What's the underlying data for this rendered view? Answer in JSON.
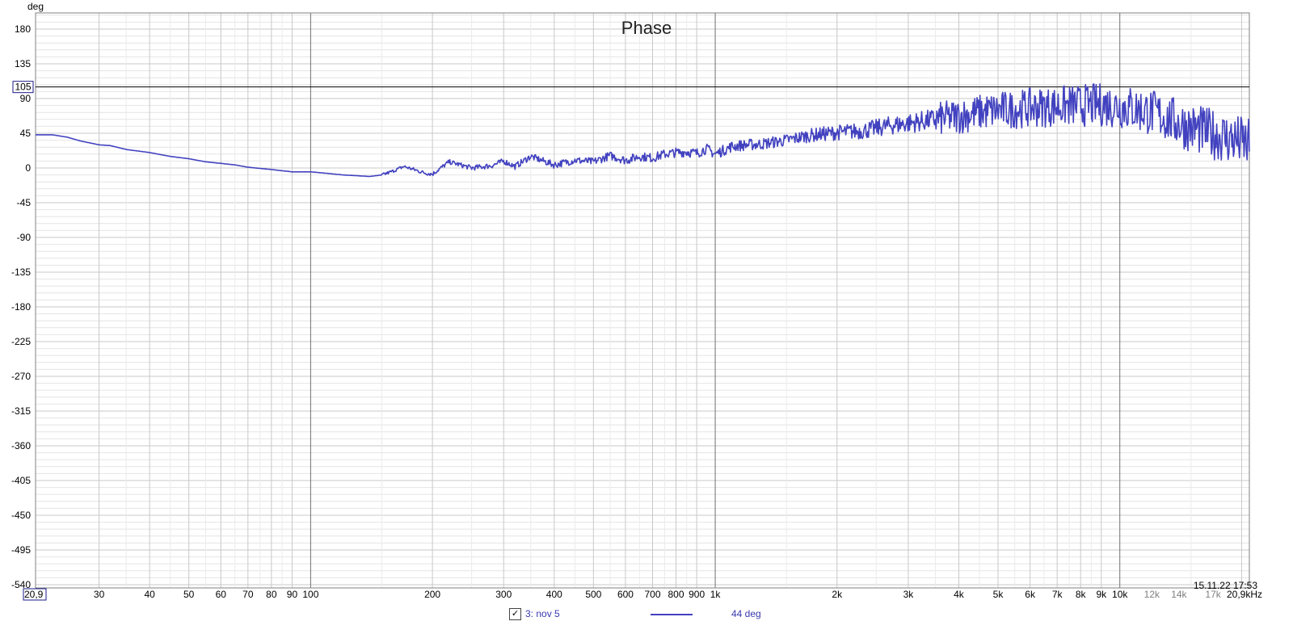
{
  "chart_data": {
    "type": "line",
    "title": "Phase",
    "ylabel": "deg",
    "xlabel": "",
    "x_scale": "log",
    "xlim": [
      20.9,
      20900
    ],
    "ylim": [
      -540,
      200
    ],
    "y_ticks": [
      180,
      135,
      90,
      45,
      0,
      -45,
      -90,
      -135,
      -180,
      -225,
      -270,
      -315,
      -360,
      -405,
      -450,
      -495,
      -540
    ],
    "x_tick_labels": [
      {
        "f": 20.9,
        "label": "20,9",
        "boxed": true
      },
      {
        "f": 30,
        "label": "30"
      },
      {
        "f": 40,
        "label": "40"
      },
      {
        "f": 50,
        "label": "50"
      },
      {
        "f": 60,
        "label": "60"
      },
      {
        "f": 70,
        "label": "70"
      },
      {
        "f": 80,
        "label": "80"
      },
      {
        "f": 90,
        "label": "90"
      },
      {
        "f": 100,
        "label": "100"
      },
      {
        "f": 200,
        "label": "200"
      },
      {
        "f": 300,
        "label": "300"
      },
      {
        "f": 400,
        "label": "400"
      },
      {
        "f": 500,
        "label": "500"
      },
      {
        "f": 600,
        "label": "600"
      },
      {
        "f": 700,
        "label": "700"
      },
      {
        "f": 800,
        "label": "800"
      },
      {
        "f": 900,
        "label": "900"
      },
      {
        "f": 1000,
        "label": "1k"
      },
      {
        "f": 2000,
        "label": "2k"
      },
      {
        "f": 3000,
        "label": "3k"
      },
      {
        "f": 4000,
        "label": "4k"
      },
      {
        "f": 5000,
        "label": "5k"
      },
      {
        "f": 6000,
        "label": "6k"
      },
      {
        "f": 7000,
        "label": "7k"
      },
      {
        "f": 8000,
        "label": "8k"
      },
      {
        "f": 9000,
        "label": "9k"
      },
      {
        "f": 10000,
        "label": "10k"
      },
      {
        "f": 12000,
        "label": "12k",
        "minor": true
      },
      {
        "f": 14000,
        "label": "14k",
        "minor": true
      },
      {
        "f": 17000,
        "label": "17k",
        "minor": true
      },
      {
        "f": 20900,
        "label": "20,9kHz"
      }
    ],
    "cursor_value": {
      "label": "105",
      "y": 105
    },
    "timestamp": "15.11.22 17:53",
    "grid": true,
    "series": [
      {
        "name": "3: nov 5",
        "color": "#4242c0",
        "x": [
          20.9,
          23,
          25,
          27,
          30,
          32,
          35,
          40,
          45,
          50,
          55,
          60,
          65,
          70,
          80,
          90,
          100,
          110,
          120,
          130,
          140,
          150,
          160,
          170,
          180,
          190,
          200,
          220,
          250,
          280,
          300,
          320,
          350,
          400,
          450,
          500,
          550,
          600,
          650,
          700,
          750,
          800,
          850,
          900,
          950,
          1000,
          1100,
          1200,
          1300,
          1500,
          1700,
          2000,
          2300,
          2700,
          3000,
          3500,
          4000,
          4500,
          5000,
          5500,
          6000,
          7000,
          8000,
          9000,
          10000,
          11000,
          12000,
          13000,
          14000,
          15000,
          17000,
          19000,
          20000,
          20900
        ],
        "y": [
          43,
          43,
          40,
          35,
          30,
          29,
          24,
          20,
          15,
          12,
          8,
          6,
          4,
          1,
          -2,
          -5,
          -5,
          -7,
          -9,
          -10,
          -11,
          -9,
          -4,
          2,
          -2,
          -6,
          -8,
          8,
          0,
          3,
          9,
          2,
          15,
          4,
          10,
          8,
          16,
          10,
          15,
          13,
          18,
          20,
          21,
          19,
          25,
          18,
          28,
          30,
          31,
          36,
          42,
          46,
          48,
          55,
          58,
          63,
          67,
          72,
          75,
          76,
          78,
          80,
          81,
          82,
          80,
          76,
          72,
          65,
          58,
          52,
          44,
          37,
          34,
          30
        ]
      }
    ]
  },
  "legend": {
    "check_glyph": "✓",
    "series_label": "3: nov 5",
    "value_label": "44 deg"
  }
}
